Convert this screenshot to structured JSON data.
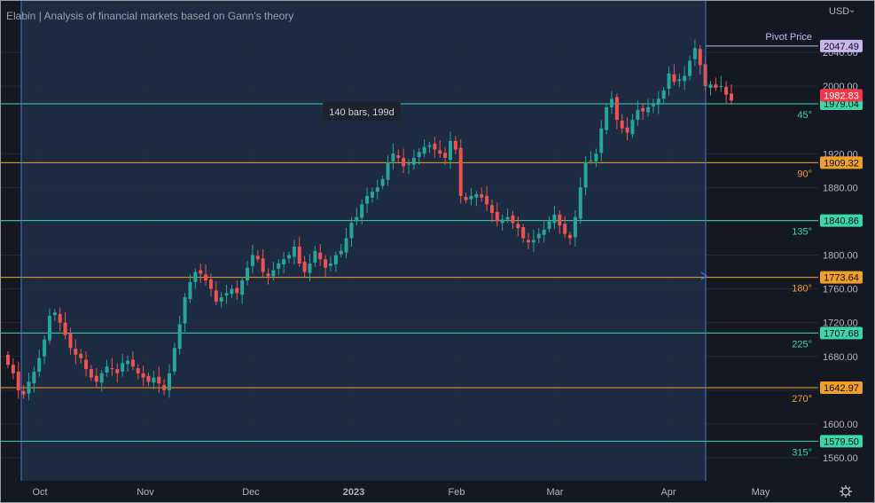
{
  "chart_title": "Elabin | Analysis of financial markets based on Gann's theory",
  "currency_label": "USD",
  "currency_chevron": "⌄",
  "settings_icon": "gear-icon",
  "measure_label": "140 bars, 199d",
  "chart_data": {
    "type": "candlestick",
    "title": "Elabin | Analysis of financial markets based on Gann's theory",
    "y_ticks": [
      "1560.00",
      "1600.00",
      "1640.00",
      "1680.00",
      "1720.00",
      "1760.00",
      "1800.00",
      "1840.00",
      "1880.00",
      "1920.00",
      "2000.00",
      "2040.00"
    ],
    "x_ticks": [
      "Oct",
      "Nov",
      "Dec",
      "2023",
      "Feb",
      "Mar",
      "Apr",
      "May"
    ],
    "ylim": [
      1530,
      2060
    ],
    "pivot": {
      "label": "Pivot Price",
      "price": "2047.49",
      "value": 2047.49
    },
    "last_price": {
      "label": "1982.83",
      "value": 1982.83
    },
    "levels": [
      {
        "angle": "45°",
        "price": "1979.04",
        "value": 1979.04,
        "color": "#3dd6a8"
      },
      {
        "angle": "90°",
        "price": "1909.32",
        "value": 1909.32,
        "color": "#f0a028"
      },
      {
        "angle": "135°",
        "price": "1840.86",
        "value": 1840.86,
        "color": "#3dd6a8"
      },
      {
        "angle": "180°",
        "price": "1773.64",
        "value": 1773.64,
        "color": "#f0a028"
      },
      {
        "angle": "225°",
        "price": "1707.68",
        "value": 1707.68,
        "color": "#3dd6a8"
      },
      {
        "angle": "270°",
        "price": "1642.97",
        "value": 1642.97,
        "color": "#f0a028"
      },
      {
        "angle": "315°",
        "price": "1579.50",
        "value": 1579.5,
        "color": "#3dd6a8"
      }
    ],
    "closes": [
      1670,
      1660,
      1640,
      1635,
      1650,
      1662,
      1678,
      1700,
      1728,
      1732,
      1720,
      1705,
      1690,
      1682,
      1678,
      1665,
      1655,
      1650,
      1660,
      1668,
      1665,
      1660,
      1672,
      1675,
      1668,
      1660,
      1655,
      1650,
      1655,
      1648,
      1640,
      1660,
      1690,
      1718,
      1750,
      1768,
      1780,
      1778,
      1770,
      1760,
      1745,
      1750,
      1755,
      1760,
      1755,
      1770,
      1785,
      1800,
      1795,
      1780,
      1775,
      1782,
      1790,
      1795,
      1800,
      1810,
      1790,
      1780,
      1790,
      1805,
      1795,
      1785,
      1790,
      1800,
      1805,
      1820,
      1838,
      1845,
      1860,
      1870,
      1875,
      1880,
      1890,
      1910,
      1920,
      1915,
      1905,
      1908,
      1915,
      1922,
      1928,
      1930,
      1925,
      1920,
      1915,
      1935,
      1925,
      1870,
      1865,
      1870,
      1872,
      1868,
      1860,
      1850,
      1840,
      1842,
      1845,
      1838,
      1832,
      1820,
      1815,
      1818,
      1825,
      1830,
      1840,
      1848,
      1835,
      1825,
      1820,
      1845,
      1880,
      1910,
      1912,
      1920,
      1950,
      1975,
      1985,
      1960,
      1950,
      1945,
      1960,
      1972,
      1970,
      1975,
      1980,
      1985,
      1995,
      2015,
      2005,
      2008,
      2012,
      2030,
      2045,
      2025,
      2000,
      2002,
      1998,
      2000,
      1990,
      1982.83
    ],
    "stats_basis": "closes"
  }
}
